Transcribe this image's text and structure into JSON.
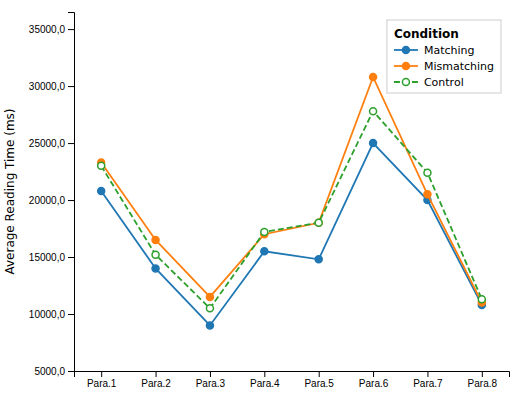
{
  "chart_data": {
    "type": "line",
    "y_label": "Average Reading Time (ms)",
    "legend_title": "Condition",
    "categories": [
      "Para.1",
      "Para.2",
      "Para.3",
      "Para.4",
      "Para.5",
      "Para.6",
      "Para.7",
      "Para.8"
    ],
    "series": [
      {
        "name": "Matching",
        "values": [
          20800,
          14000,
          9000,
          15500,
          14800,
          25000,
          20000,
          10800
        ],
        "marker": "circle",
        "line_style": "solid"
      },
      {
        "name": "Mismatching",
        "values": [
          23300,
          16500,
          11500,
          17000,
          18000,
          30800,
          20500,
          11000
        ],
        "marker": "circle",
        "line_style": "solid"
      },
      {
        "name": "Control",
        "values": [
          23000,
          15200,
          10500,
          17200,
          18000,
          27800,
          22400,
          11300
        ],
        "marker": "open-circle",
        "line_style": "dashed"
      }
    ],
    "ylim": [
      5000,
      36500
    ],
    "yticks": [
      {
        "value": 5000,
        "label": "5000,0"
      },
      {
        "value": 10000,
        "label": "10000,0"
      },
      {
        "value": 15000,
        "label": "15000,0"
      },
      {
        "value": 20000,
        "label": "20000,0"
      },
      {
        "value": 25000,
        "label": "25000,0"
      },
      {
        "value": 30000,
        "label": "30000,0"
      },
      {
        "value": 35000,
        "label": "35000,0"
      }
    ],
    "grid": false,
    "legend": "upper right"
  }
}
